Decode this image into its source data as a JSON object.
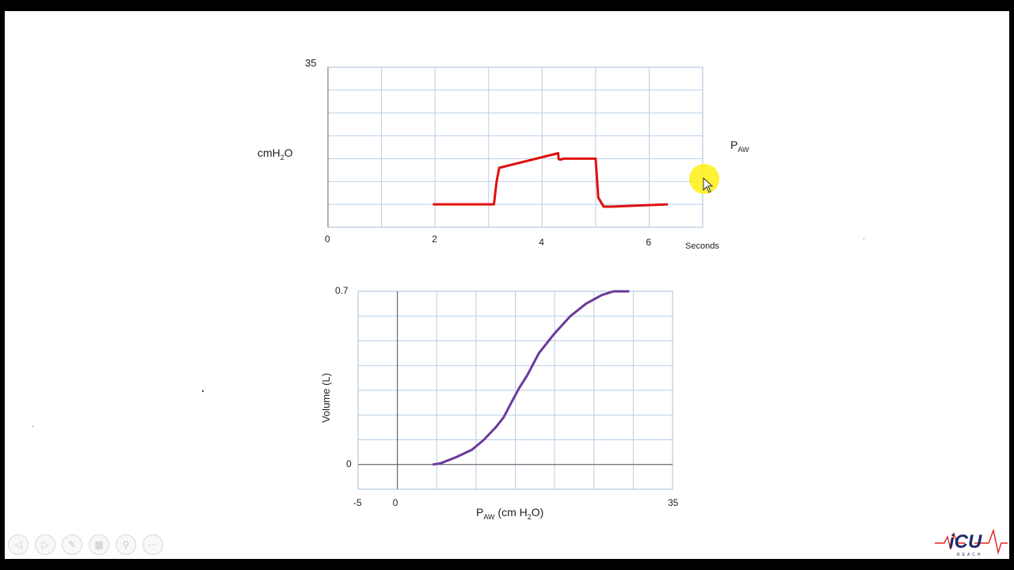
{
  "chart_data": [
    {
      "type": "line",
      "ylabel_main": "cmH",
      "ylabel_sub": "2",
      "ylabel_tail": "O",
      "ymax_label": "35",
      "ylim": [
        0,
        35
      ],
      "xlim": [
        0,
        7
      ],
      "xticks": [
        "0",
        "2",
        "4",
        "6"
      ],
      "xtick_values": [
        0,
        2,
        4,
        6
      ],
      "xlabel": "Seconds",
      "series_label_main": "P",
      "series_label_sub": "AW",
      "grid": true,
      "color": "#e01010",
      "series": [
        {
          "x": [
            1.96,
            3.1,
            3.15,
            3.2,
            4.3,
            4.31,
            4.35,
            4.4,
            4.41,
            5.0,
            5.05,
            5.15,
            5.3,
            6.35
          ],
          "y": [
            5,
            5,
            10,
            13,
            16.2,
            14.9,
            14.8,
            15,
            15,
            15,
            6.5,
            4.5,
            4.5,
            5
          ]
        }
      ]
    },
    {
      "type": "line",
      "ylabel": "Volume (L)",
      "xlabel_main": "P",
      "xlabel_sub": "AW",
      "xlabel_mid": " (cm H",
      "xlabel_sub2": "2",
      "xlabel_tail": "O)",
      "yticks": [
        "0.7",
        "0"
      ],
      "ytick_values": [
        0.7,
        0
      ],
      "xticks": [
        "-5",
        "0",
        "35"
      ],
      "xtick_values": [
        -5,
        0,
        35
      ],
      "xlim": [
        -5,
        35
      ],
      "ylim": [
        -0.1,
        0.7
      ],
      "grid": true,
      "color": "#6a3a9a",
      "series": [
        {
          "x": [
            4.5,
            5.5,
            7.5,
            9.5,
            11,
            12.5,
            13.5,
            14.5,
            15.5,
            16.5,
            18,
            20,
            22,
            24,
            26,
            27.5,
            29,
            29.5
          ],
          "y": [
            0,
            0.005,
            0.03,
            0.06,
            0.1,
            0.15,
            0.19,
            0.25,
            0.31,
            0.36,
            0.45,
            0.53,
            0.6,
            0.65,
            0.685,
            0.7,
            0.7,
            0.7
          ]
        }
      ]
    }
  ],
  "toolbar": {
    "icons": [
      "prev-icon",
      "next-icon",
      "pen-icon",
      "slides-icon",
      "zoom-icon",
      "more-icon"
    ]
  },
  "logo": {
    "text": "iCU",
    "sub": "REACH"
  }
}
